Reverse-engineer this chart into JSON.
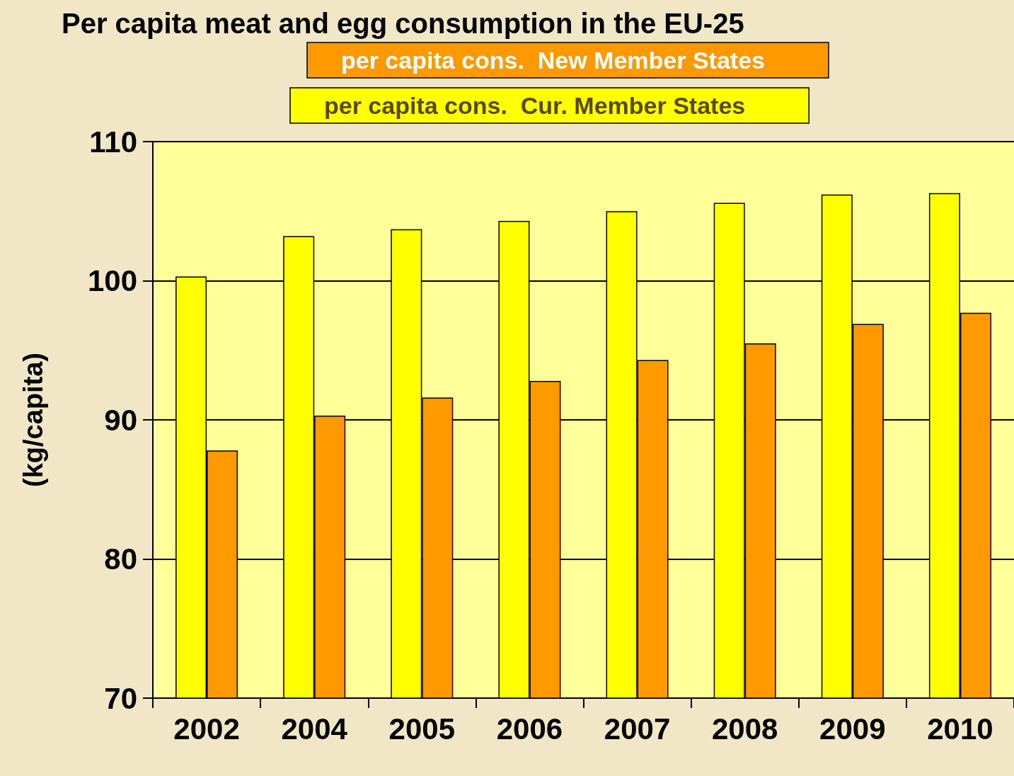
{
  "chart_data": {
    "type": "bar",
    "title": "Per capita meat and egg consumption in the EU-25",
    "ylabel": "(kg/capita)",
    "categories": [
      "2002",
      "2004",
      "2005",
      "2006",
      "2007",
      "2008",
      "2009",
      "2010"
    ],
    "series": [
      {
        "name": "per capita cons.  Cur. Member States",
        "color": "#ffff00",
        "values": [
          100.3,
          103.2,
          103.7,
          104.3,
          105.0,
          105.6,
          106.2,
          106.3
        ]
      },
      {
        "name": "per capita cons.  New Member States",
        "color": "#ff9900",
        "values": [
          87.8,
          90.3,
          91.6,
          92.8,
          94.3,
          95.5,
          96.9,
          97.7
        ]
      }
    ],
    "ylim": [
      70,
      110
    ],
    "yticks": [
      70,
      80,
      90,
      100,
      110
    ],
    "grid": "y",
    "legend": "top"
  }
}
